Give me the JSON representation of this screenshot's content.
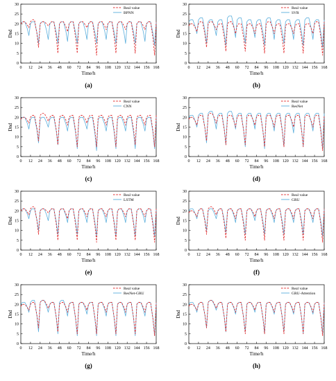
{
  "figure": {
    "shared": {
      "xlabel": "Time/h",
      "ylabel": "Dnd",
      "xticks": [
        0,
        12,
        24,
        36,
        48,
        60,
        72,
        84,
        96,
        108,
        120,
        132,
        144,
        156,
        168
      ],
      "yticks": [
        0,
        5,
        10,
        15,
        20,
        25,
        30
      ],
      "real_color": "#e0282a",
      "pred_color": "#5aaedc"
    }
  },
  "chart_data": [
    {
      "type": "line",
      "panel_label": "(a)",
      "xlabel": "Time/h",
      "ylabel": "Dnd",
      "xlim": [
        0,
        168
      ],
      "ylim": [
        0,
        30
      ],
      "series": [
        {
          "name": "Real value",
          "style": "dashed",
          "color": "#e0282a",
          "troughs": [
            18,
            8,
            19,
            5,
            16,
            5,
            18,
            4,
            17,
            5,
            17,
            5,
            17,
            4
          ],
          "peaks": [
            21,
            22,
            21,
            21,
            21,
            21,
            21,
            21,
            21,
            21,
            21,
            21,
            21,
            21
          ]
        },
        {
          "name": "BPNN",
          "style": "solid",
          "color": "#5aaedc",
          "troughs": [
            14,
            10,
            12,
            10,
            11,
            10,
            12,
            10,
            12,
            10,
            10,
            10,
            11,
            9
          ],
          "peaks": [
            21,
            21,
            21,
            21,
            21,
            21,
            21,
            21,
            21,
            21,
            21,
            21,
            21,
            21
          ]
        }
      ]
    },
    {
      "type": "line",
      "panel_label": "(b)",
      "xlabel": "Time/h",
      "ylabel": "Dnd",
      "xlim": [
        0,
        168
      ],
      "ylim": [
        0,
        30
      ],
      "series": [
        {
          "name": "Real value",
          "style": "dashed",
          "color": "#e0282a",
          "troughs": [
            16,
            8,
            17,
            6,
            15,
            6,
            15,
            5,
            15,
            5,
            15,
            5,
            15,
            4
          ],
          "peaks": [
            20,
            21,
            21,
            20,
            21,
            20,
            20,
            20,
            21,
            20,
            20,
            20,
            20,
            21
          ]
        },
        {
          "name": "SVR",
          "style": "solid",
          "color": "#5aaedc",
          "troughs": [
            15,
            10,
            14,
            9,
            13,
            10,
            13,
            9,
            12,
            10,
            12,
            9,
            12,
            8
          ],
          "peaks": [
            22,
            23,
            22,
            22,
            24,
            23,
            22,
            22,
            23,
            22,
            22,
            22,
            23,
            22
          ]
        }
      ]
    },
    {
      "type": "line",
      "panel_label": "(c)",
      "xlabel": "Time/h",
      "ylabel": "Dnd",
      "xlim": [
        0,
        168
      ],
      "ylim": [
        0,
        30
      ],
      "series": [
        {
          "name": "Real value",
          "style": "dashed",
          "color": "#e0282a",
          "troughs": [
            17,
            8,
            18,
            6,
            16,
            5,
            17,
            5,
            16,
            5,
            16,
            6,
            16,
            5
          ],
          "peaks": [
            20,
            21,
            22,
            21,
            21,
            21,
            21,
            21,
            21,
            21,
            21,
            21,
            21,
            21
          ]
        },
        {
          "name": "CNN",
          "style": "solid",
          "color": "#5aaedc",
          "troughs": [
            14,
            7,
            15,
            6,
            13,
            4,
            14,
            3,
            13,
            4,
            13,
            4,
            13,
            4
          ],
          "peaks": [
            20,
            20,
            20,
            20,
            20,
            20,
            20,
            20,
            20,
            20,
            20,
            20,
            20,
            20
          ]
        }
      ]
    },
    {
      "type": "line",
      "panel_label": "(d)",
      "xlabel": "Time/h",
      "ylabel": "Dnd",
      "xlim": [
        0,
        168
      ],
      "ylim": [
        0,
        30
      ],
      "series": [
        {
          "name": "Real value",
          "style": "dashed",
          "color": "#e0282a",
          "troughs": [
            16,
            8,
            17,
            6,
            15,
            6,
            16,
            5,
            15,
            5,
            15,
            5,
            15,
            3
          ],
          "peaks": [
            20,
            21,
            22,
            21,
            21,
            21,
            21,
            21,
            21,
            21,
            21,
            21,
            21,
            21
          ]
        },
        {
          "name": "ResNet",
          "style": "solid",
          "color": "#5aaedc",
          "troughs": [
            15,
            7,
            14,
            6,
            14,
            5,
            14,
            4,
            13,
            5,
            12,
            5,
            13,
            4
          ],
          "peaks": [
            21,
            22,
            23,
            22,
            23,
            22,
            22,
            22,
            22,
            22,
            22,
            22,
            22,
            22
          ]
        }
      ]
    },
    {
      "type": "line",
      "panel_label": "(e)",
      "xlabel": "Time/h",
      "ylabel": "Dnd",
      "xlim": [
        0,
        168
      ],
      "ylim": [
        0,
        30
      ],
      "series": [
        {
          "name": "Real value",
          "style": "dashed",
          "color": "#e0282a",
          "troughs": [
            18,
            8,
            19,
            5,
            16,
            5,
            17,
            4,
            17,
            5,
            17,
            5,
            17,
            4
          ],
          "peaks": [
            21,
            22,
            21,
            21,
            21,
            21,
            21,
            21,
            21,
            21,
            21,
            21,
            21,
            21
          ]
        },
        {
          "name": "LSTM",
          "style": "solid",
          "color": "#5aaedc",
          "troughs": [
            16,
            10,
            15,
            8,
            14,
            8,
            14,
            7,
            14,
            7,
            14,
            7,
            14,
            7
          ],
          "peaks": [
            21,
            21,
            21,
            21,
            21,
            21,
            21,
            21,
            21,
            21,
            21,
            21,
            21,
            21
          ]
        }
      ]
    },
    {
      "type": "line",
      "panel_label": "(f)",
      "xlabel": "Time/h",
      "ylabel": "Dnd",
      "xlim": [
        0,
        168
      ],
      "ylim": [
        0,
        30
      ],
      "series": [
        {
          "name": "Real value",
          "style": "dashed",
          "color": "#e0282a",
          "troughs": [
            17,
            8,
            18,
            6,
            16,
            5,
            17,
            5,
            16,
            5,
            16,
            5,
            16,
            4
          ],
          "peaks": [
            20,
            21,
            22,
            21,
            21,
            21,
            21,
            21,
            21,
            21,
            21,
            21,
            21,
            21
          ]
        },
        {
          "name": "GRU",
          "style": "solid",
          "color": "#5aaedc",
          "troughs": [
            16,
            10,
            16,
            9,
            14,
            8,
            15,
            8,
            14,
            8,
            14,
            8,
            14,
            7
          ],
          "peaks": [
            21,
            21,
            21,
            21,
            21,
            21,
            21,
            21,
            21,
            21,
            21,
            21,
            21,
            21
          ]
        }
      ]
    },
    {
      "type": "line",
      "panel_label": "(g)",
      "xlabel": "Time/h",
      "ylabel": "Dnd",
      "xlim": [
        0,
        168
      ],
      "ylim": [
        0,
        30
      ],
      "series": [
        {
          "name": "Real value",
          "style": "dashed",
          "color": "#e0282a",
          "troughs": [
            17,
            8,
            18,
            6,
            16,
            5,
            17,
            5,
            16,
            5,
            16,
            5,
            16,
            4
          ],
          "peaks": [
            20,
            21,
            22,
            21,
            21,
            21,
            21,
            21,
            21,
            21,
            21,
            21,
            21,
            21
          ]
        },
        {
          "name": "ResNet-GRU",
          "style": "solid",
          "color": "#5aaedc",
          "troughs": [
            16,
            6,
            16,
            5,
            14,
            4,
            15,
            4,
            14,
            4,
            14,
            4,
            14,
            4
          ],
          "peaks": [
            21,
            22,
            22,
            21,
            22,
            21,
            21,
            21,
            21,
            21,
            21,
            21,
            21,
            21
          ]
        }
      ]
    },
    {
      "type": "line",
      "panel_label": "(h)",
      "xlabel": "Time/h",
      "ylabel": "Dnd",
      "xlim": [
        0,
        168
      ],
      "ylim": [
        0,
        30
      ],
      "series": [
        {
          "name": "Real value",
          "style": "dashed",
          "color": "#e0282a",
          "troughs": [
            17,
            8,
            18,
            6,
            16,
            5,
            17,
            5,
            16,
            5,
            16,
            5,
            16,
            4
          ],
          "peaks": [
            20,
            21,
            22,
            21,
            21,
            21,
            21,
            21,
            21,
            21,
            21,
            21,
            21,
            21
          ]
        },
        {
          "name": "GRU-Attention",
          "style": "solid",
          "color": "#5aaedc",
          "troughs": [
            16,
            8,
            17,
            6,
            15,
            6,
            16,
            5,
            15,
            6,
            15,
            5,
            15,
            5
          ],
          "peaks": [
            21,
            21,
            22,
            21,
            21,
            21,
            21,
            21,
            21,
            21,
            21,
            21,
            21,
            21
          ]
        }
      ]
    }
  ]
}
